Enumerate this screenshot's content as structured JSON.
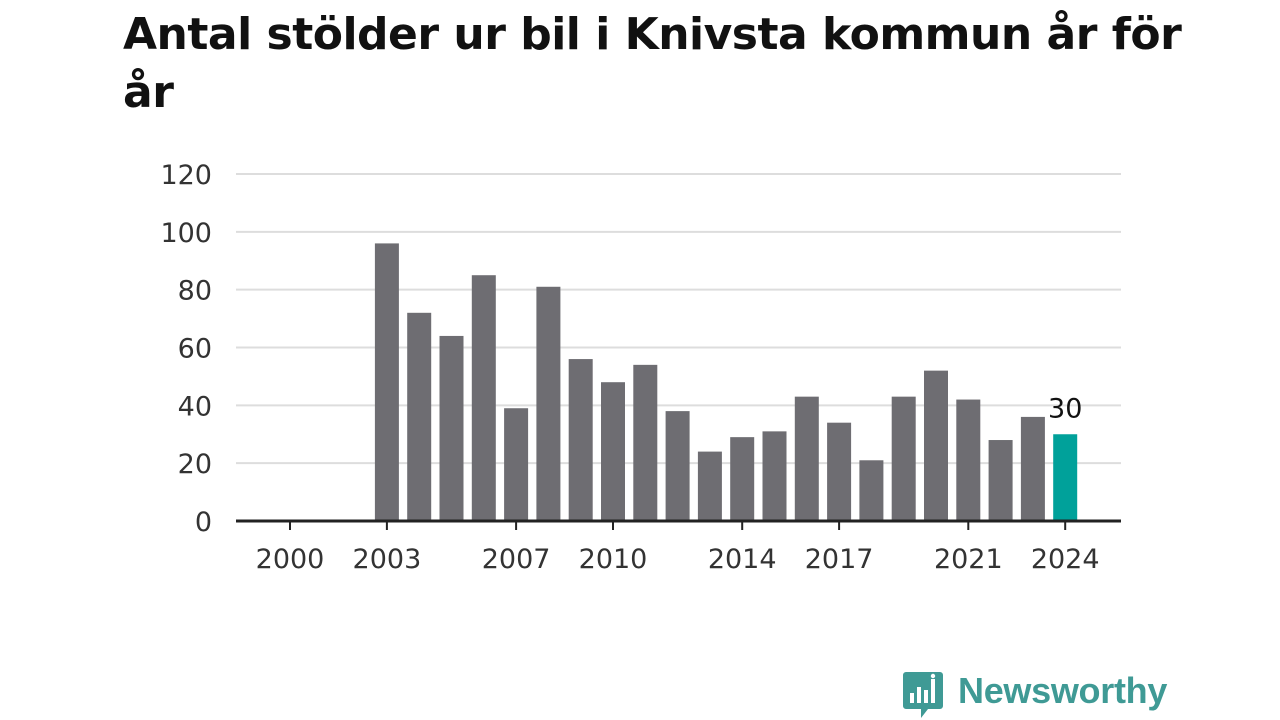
{
  "title": "Antal stölder ur bil i Knivsta kommun år för år",
  "brand": {
    "name": "Newsworthy",
    "color": "#3f9a95"
  },
  "colors": {
    "bar": "#6e6d72",
    "highlight": "#00a19a",
    "grid": "#dddddd",
    "axis": "#222222"
  },
  "chart_data": {
    "type": "bar",
    "title": "Antal stölder ur bil i Knivsta kommun år för år",
    "categories": [
      "2000",
      "2001",
      "2002",
      "2003",
      "2004",
      "2005",
      "2006",
      "2007",
      "2008",
      "2009",
      "2010",
      "2011",
      "2012",
      "2013",
      "2014",
      "2015",
      "2016",
      "2017",
      "2018",
      "2019",
      "2020",
      "2021",
      "2022",
      "2023",
      "2024"
    ],
    "values": [
      0,
      0,
      0,
      96,
      72,
      64,
      85,
      39,
      81,
      56,
      48,
      54,
      38,
      24,
      29,
      31,
      43,
      34,
      21,
      43,
      52,
      42,
      28,
      36,
      30
    ],
    "x_tick_labels": [
      "2000",
      "2003",
      "2007",
      "2010",
      "2014",
      "2017",
      "2021",
      "2024"
    ],
    "y_ticks": [
      0,
      20,
      40,
      60,
      80,
      100,
      120
    ],
    "ylim": [
      0,
      120
    ],
    "highlight": {
      "category": "2024",
      "label": "30"
    },
    "xlabel": "",
    "ylabel": "",
    "grid": true,
    "legend": "none"
  }
}
